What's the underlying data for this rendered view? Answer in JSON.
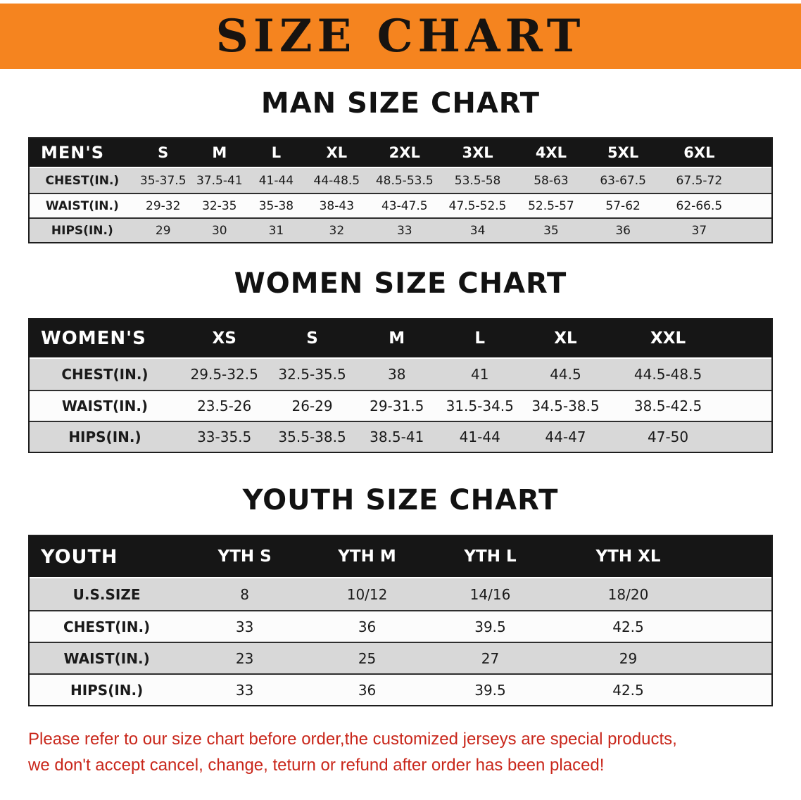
{
  "colors": {
    "banner-bg": "#f5841f",
    "table-header-bg": "#161616",
    "row-gray": "#d8d8d8",
    "row-white": "#fcfcfc",
    "notice-red": "#c9271b",
    "table-border": "#1d1d1d"
  },
  "banner": {
    "title": "SIZE CHART"
  },
  "sections": [
    {
      "key": "men",
      "heading": "MAN SIZE CHART",
      "table": {
        "header": [
          "MEN'S",
          "S",
          "M",
          "L",
          "XL",
          "2XL",
          "3XL",
          "4XL",
          "5XL",
          "6XL"
        ],
        "rows": [
          [
            "CHEST(IN.)",
            "35-37.5",
            "37.5-41",
            "41-44",
            "44-48.5",
            "48.5-53.5",
            "53.5-58",
            "58-63",
            "63-67.5",
            "67.5-72"
          ],
          [
            "WAIST(IN.)",
            "29-32",
            "32-35",
            "35-38",
            "38-43",
            "43-47.5",
            "47.5-52.5",
            "52.5-57",
            "57-62",
            "62-66.5"
          ],
          [
            "HIPS(IN.)",
            "29",
            "30",
            "31",
            "32",
            "33",
            "34",
            "35",
            "36",
            "37"
          ]
        ]
      }
    },
    {
      "key": "women",
      "heading": "WOMEN SIZE CHART",
      "table": {
        "header": [
          "WOMEN'S",
          "XS",
          "S",
          "M",
          "L",
          "XL",
          "XXL"
        ],
        "rows": [
          [
            "CHEST(IN.)",
            "29.5-32.5",
            "32.5-35.5",
            "38",
            "41",
            "44.5",
            "44.5-48.5"
          ],
          [
            "WAIST(IN.)",
            "23.5-26",
            "26-29",
            "29-31.5",
            "31.5-34.5",
            "34.5-38.5",
            "38.5-42.5"
          ],
          [
            "HIPS(IN.)",
            "33-35.5",
            "35.5-38.5",
            "38.5-41",
            "41-44",
            "44-47",
            "47-50"
          ]
        ]
      }
    },
    {
      "key": "youth",
      "heading": "YOUTH SIZE CHART",
      "table": {
        "header": [
          "YOUTH",
          "YTH S",
          "YTH M",
          "YTH L",
          "YTH XL"
        ],
        "rows": [
          [
            "U.S.SIZE",
            "8",
            "10/12",
            "14/16",
            "18/20"
          ],
          [
            "CHEST(IN.)",
            "33",
            "36",
            "39.5",
            "42.5"
          ],
          [
            "WAIST(IN.)",
            "23",
            "25",
            "27",
            "29"
          ],
          [
            "HIPS(IN.)",
            "33",
            "36",
            "39.5",
            "42.5"
          ]
        ]
      }
    }
  ],
  "notice": {
    "line1": "Please refer to our size chart before order,the customized jerseys are special products,",
    "line2": "we don't accept cancel, change, teturn or refund after order has been placed!"
  }
}
